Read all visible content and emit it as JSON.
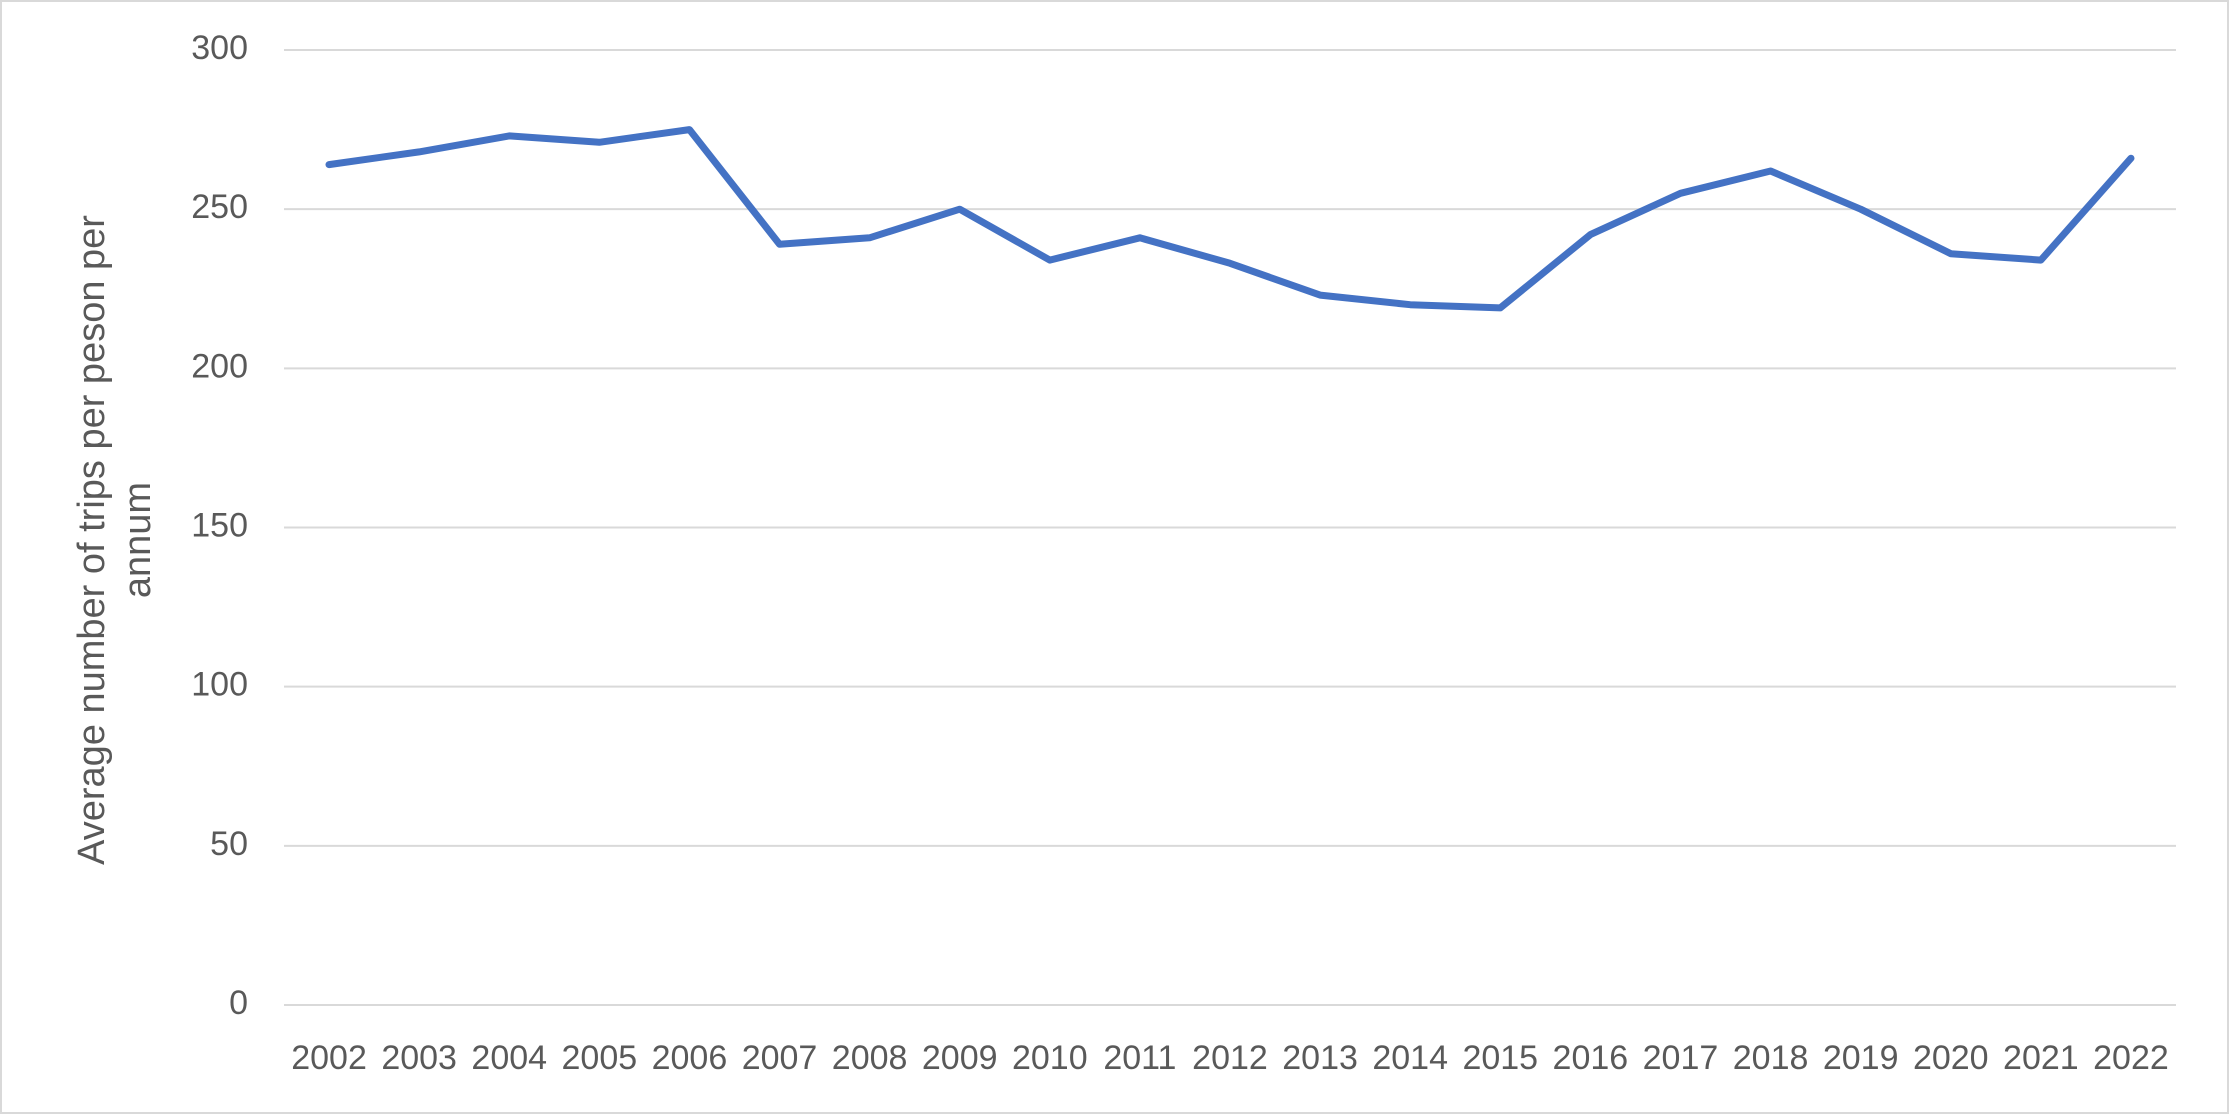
{
  "chart_data": {
    "type": "line",
    "y_label": "Average number of trips per peson per annum",
    "categories": [
      "2002",
      "2003",
      "2004",
      "2005",
      "2006",
      "2007",
      "2008",
      "2009",
      "2010",
      "2011",
      "2012",
      "2013",
      "2014",
      "2015",
      "2016",
      "2017",
      "2018",
      "2019",
      "2020",
      "2021",
      "2022"
    ],
    "values": [
      264,
      268,
      273,
      271,
      275,
      239,
      241,
      250,
      234,
      241,
      233,
      223,
      220,
      219,
      242,
      255,
      262,
      250,
      236,
      234,
      266
    ],
    "color": "#4472c4",
    "ylim": [
      0,
      300
    ],
    "yticks": [
      0,
      50,
      100,
      150,
      200,
      250,
      300
    ],
    "grid": true
  }
}
